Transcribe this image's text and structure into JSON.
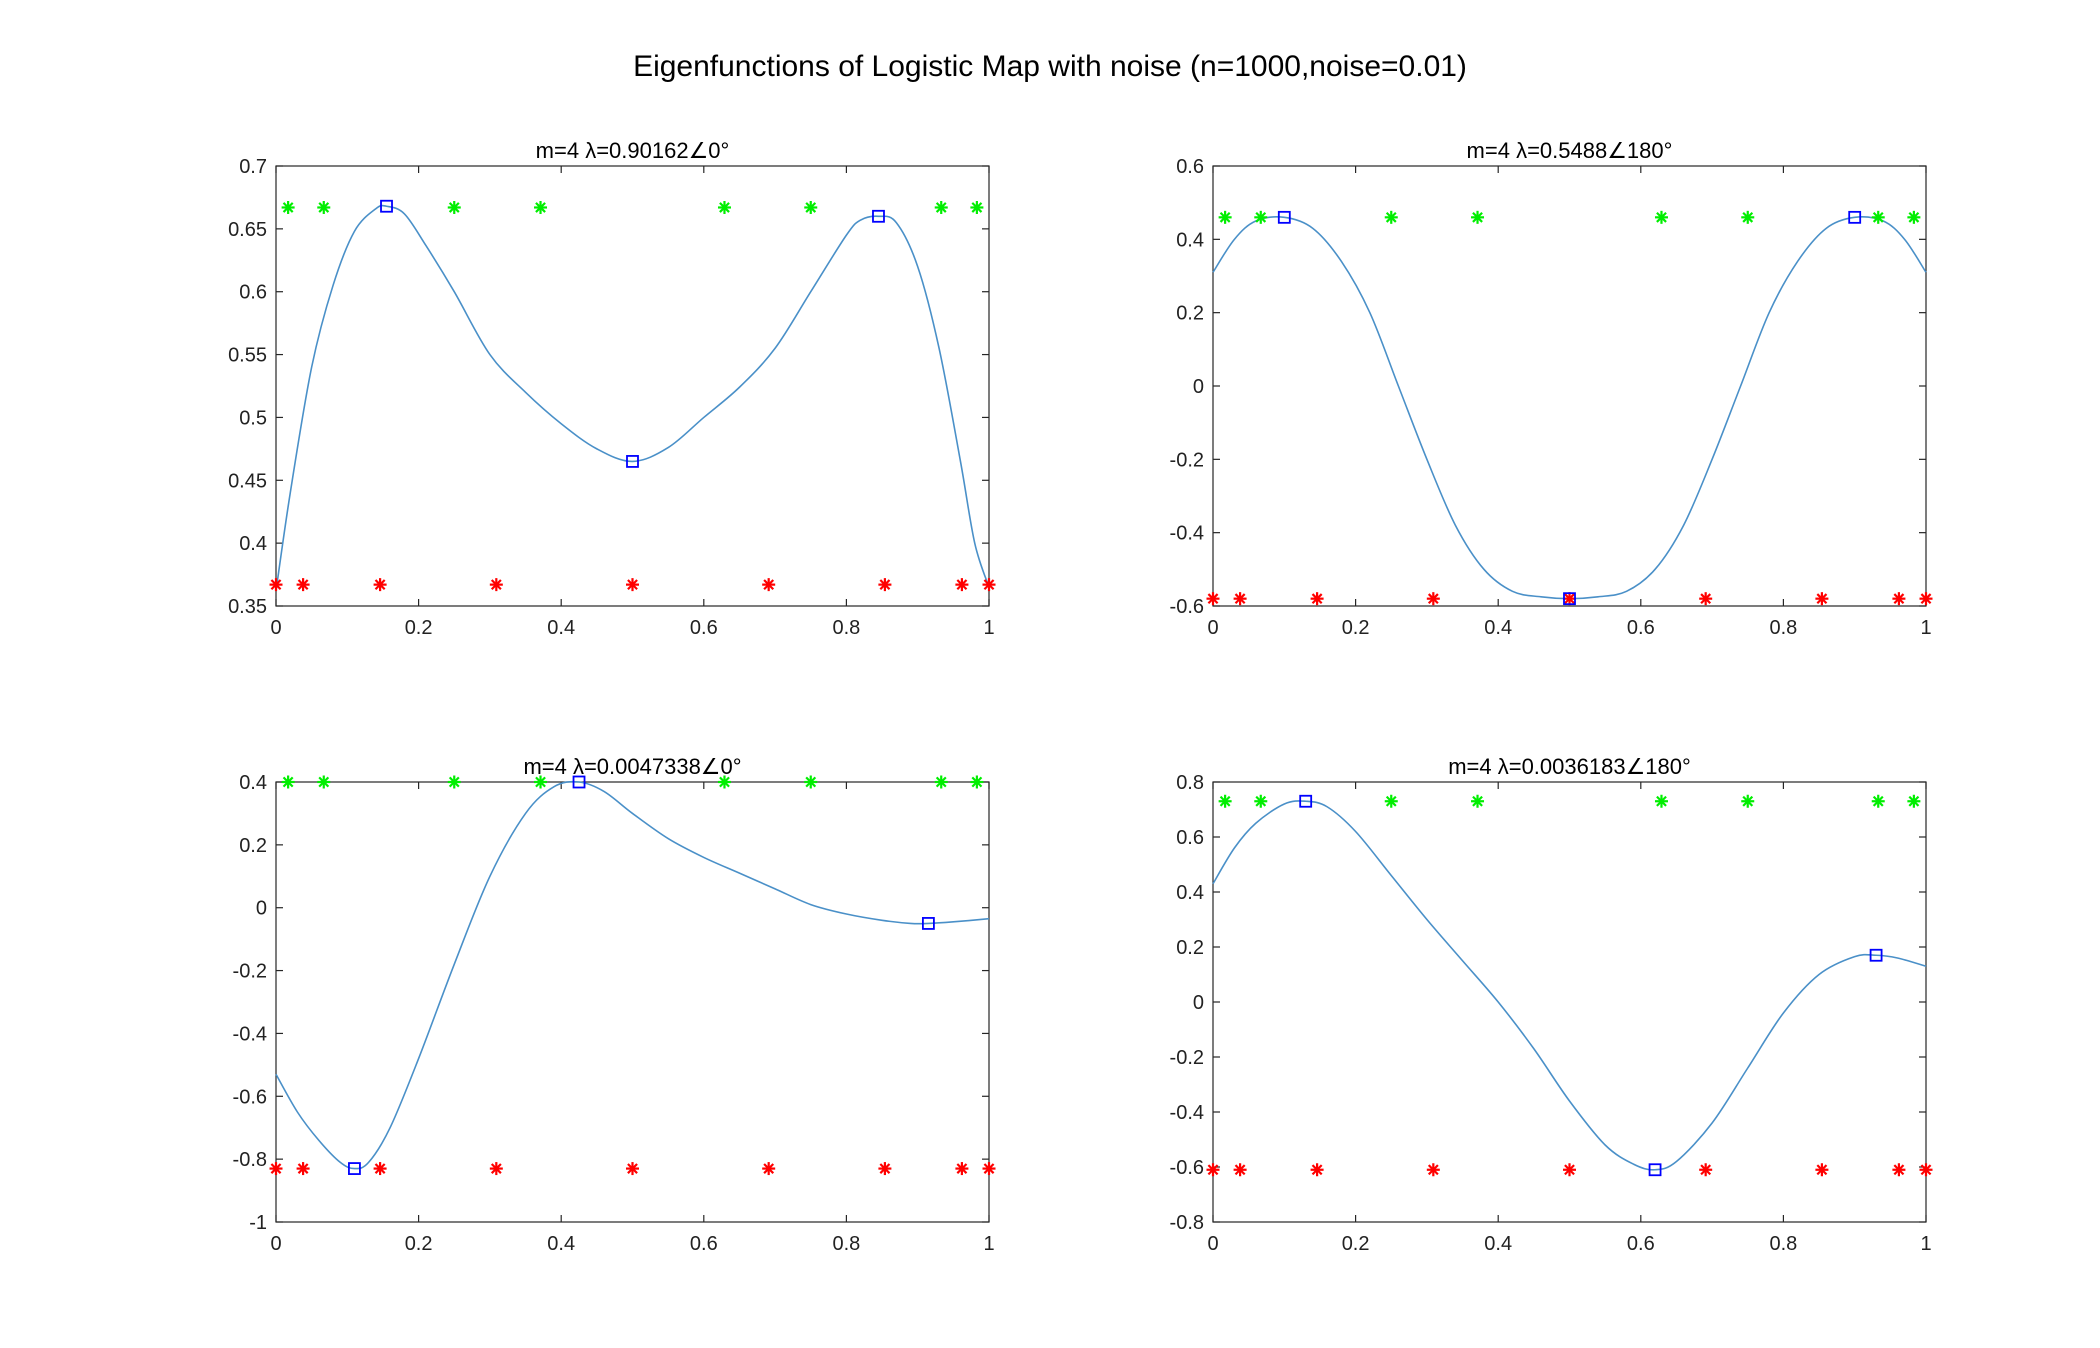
{
  "figure": {
    "title": "Eigenfunctions of Logistic Map with noise (n=1000,noise=0.01)"
  },
  "colors": {
    "curve": "#4a90c8",
    "squares": "#0000ff",
    "green": "#00ee00",
    "red": "#ff0000",
    "axes": "#262626"
  },
  "chart_data": [
    {
      "type": "line",
      "title": "m=4 λ=0.90162∠0°",
      "xlim": [
        0,
        1
      ],
      "ylim": [
        0.35,
        0.7
      ],
      "xticks": [
        "0",
        "0.2",
        "0.4",
        "0.6",
        "0.8",
        "1"
      ],
      "yticks": [
        "0.35",
        "0.4",
        "0.45",
        "0.5",
        "0.55",
        "0.6",
        "0.65",
        "0.7"
      ],
      "curve": {
        "x": [
          0,
          0.02,
          0.05,
          0.08,
          0.11,
          0.14,
          0.155,
          0.18,
          0.21,
          0.25,
          0.3,
          0.35,
          0.4,
          0.45,
          0.5,
          0.55,
          0.6,
          0.65,
          0.7,
          0.75,
          0.8,
          0.82,
          0.845,
          0.87,
          0.9,
          0.93,
          0.96,
          0.98,
          1.0
        ],
        "y": [
          0.362,
          0.44,
          0.54,
          0.605,
          0.648,
          0.666,
          0.668,
          0.662,
          0.637,
          0.6,
          0.55,
          0.52,
          0.495,
          0.475,
          0.465,
          0.476,
          0.5,
          0.524,
          0.555,
          0.6,
          0.645,
          0.657,
          0.66,
          0.655,
          0.62,
          0.555,
          0.465,
          0.4,
          0.365
        ]
      },
      "squares": {
        "x": [
          0.155,
          0.5,
          0.845
        ],
        "y": [
          0.668,
          0.465,
          0.66
        ]
      },
      "green_stars": {
        "x": [
          0.017,
          0.067,
          0.25,
          0.371,
          0.629,
          0.75,
          0.933,
          0.983
        ],
        "y": 0.667
      },
      "red_stars": {
        "x": [
          0,
          0.038,
          0.146,
          0.309,
          0.5,
          0.691,
          0.854,
          0.962,
          1.0
        ],
        "y": 0.367
      }
    },
    {
      "type": "line",
      "title": "m=4 λ=0.5488∠180°",
      "xlim": [
        0,
        1
      ],
      "ylim": [
        -0.6,
        0.6
      ],
      "xticks": [
        "0",
        "0.2",
        "0.4",
        "0.6",
        "0.8",
        "1"
      ],
      "yticks": [
        "-0.6",
        "-0.4",
        "-0.2",
        "0",
        "0.2",
        "0.4",
        "0.6"
      ],
      "curve": {
        "x": [
          0,
          0.03,
          0.06,
          0.1,
          0.14,
          0.18,
          0.22,
          0.26,
          0.3,
          0.34,
          0.38,
          0.42,
          0.46,
          0.5,
          0.54,
          0.58,
          0.62,
          0.66,
          0.7,
          0.74,
          0.78,
          0.82,
          0.86,
          0.9,
          0.94,
          0.97,
          1.0
        ],
        "y": [
          0.31,
          0.4,
          0.45,
          0.46,
          0.43,
          0.34,
          0.2,
          0.0,
          -0.2,
          -0.38,
          -0.5,
          -0.56,
          -0.575,
          -0.58,
          -0.575,
          -0.56,
          -0.5,
          -0.38,
          -0.2,
          0.0,
          0.2,
          0.34,
          0.43,
          0.46,
          0.45,
          0.4,
          0.31
        ]
      },
      "squares": {
        "x": [
          0.1,
          0.5,
          0.9
        ],
        "y": [
          0.46,
          -0.58,
          0.46
        ]
      },
      "green_stars": {
        "x": [
          0.017,
          0.067,
          0.25,
          0.371,
          0.629,
          0.75,
          0.933,
          0.983
        ],
        "y": 0.46
      },
      "red_stars": {
        "x": [
          0,
          0.038,
          0.146,
          0.309,
          0.5,
          0.691,
          0.854,
          0.962,
          1.0
        ],
        "y": -0.58
      }
    },
    {
      "type": "line",
      "title": "m=4 λ=0.0047338∠0°",
      "xlim": [
        0,
        1
      ],
      "ylim": [
        -1,
        0.4
      ],
      "xticks": [
        "0",
        "0.2",
        "0.4",
        "0.6",
        "0.8",
        "1"
      ],
      "yticks": [
        "-1",
        "-0.8",
        "-0.6",
        "-0.4",
        "-0.2",
        "0",
        "0.2",
        "0.4"
      ],
      "curve": {
        "x": [
          0,
          0.03,
          0.06,
          0.09,
          0.11,
          0.13,
          0.16,
          0.2,
          0.25,
          0.3,
          0.35,
          0.39,
          0.425,
          0.46,
          0.5,
          0.55,
          0.6,
          0.65,
          0.7,
          0.75,
          0.8,
          0.85,
          0.89,
          0.915,
          0.95,
          1.0
        ],
        "y": [
          -0.53,
          -0.65,
          -0.74,
          -0.81,
          -0.83,
          -0.81,
          -0.7,
          -0.48,
          -0.18,
          0.1,
          0.3,
          0.385,
          0.4,
          0.37,
          0.3,
          0.22,
          0.16,
          0.11,
          0.06,
          0.01,
          -0.02,
          -0.04,
          -0.05,
          -0.05,
          -0.045,
          -0.035
        ]
      },
      "squares": {
        "x": [
          0.11,
          0.425,
          0.915
        ],
        "y": [
          -0.83,
          0.4,
          -0.05
        ]
      },
      "green_stars": {
        "x": [
          0.017,
          0.067,
          0.25,
          0.371,
          0.629,
          0.75,
          0.933,
          0.983
        ],
        "y": 0.4
      },
      "red_stars": {
        "x": [
          0,
          0.038,
          0.146,
          0.309,
          0.5,
          0.691,
          0.854,
          0.962,
          1.0
        ],
        "y": -0.83
      }
    },
    {
      "type": "line",
      "title": "m=4 λ=0.0036183∠180°",
      "xlim": [
        0,
        1
      ],
      "ylim": [
        -0.8,
        0.8
      ],
      "xticks": [
        "0",
        "0.2",
        "0.4",
        "0.6",
        "0.8",
        "1"
      ],
      "yticks": [
        "-0.8",
        "-0.6",
        "-0.4",
        "-0.2",
        "0",
        "0.2",
        "0.4",
        "0.6",
        "0.8"
      ],
      "curve": {
        "x": [
          0,
          0.03,
          0.06,
          0.1,
          0.13,
          0.16,
          0.2,
          0.25,
          0.3,
          0.35,
          0.4,
          0.45,
          0.5,
          0.55,
          0.59,
          0.62,
          0.65,
          0.7,
          0.75,
          0.8,
          0.85,
          0.9,
          0.93,
          0.96,
          1.0
        ],
        "y": [
          0.43,
          0.56,
          0.65,
          0.72,
          0.73,
          0.71,
          0.62,
          0.46,
          0.3,
          0.15,
          0.0,
          -0.17,
          -0.36,
          -0.52,
          -0.59,
          -0.61,
          -0.58,
          -0.44,
          -0.24,
          -0.04,
          0.1,
          0.165,
          0.17,
          0.16,
          0.13
        ]
      },
      "squares": {
        "x": [
          0.13,
          0.62,
          0.93
        ],
        "y": [
          0.73,
          -0.61,
          0.17
        ]
      },
      "green_stars": {
        "x": [
          0.017,
          0.067,
          0.25,
          0.371,
          0.629,
          0.75,
          0.933,
          0.983
        ],
        "y": 0.73
      },
      "red_stars": {
        "x": [
          0,
          0.038,
          0.146,
          0.309,
          0.5,
          0.691,
          0.854,
          0.962,
          1.0
        ],
        "y": -0.61
      }
    }
  ]
}
